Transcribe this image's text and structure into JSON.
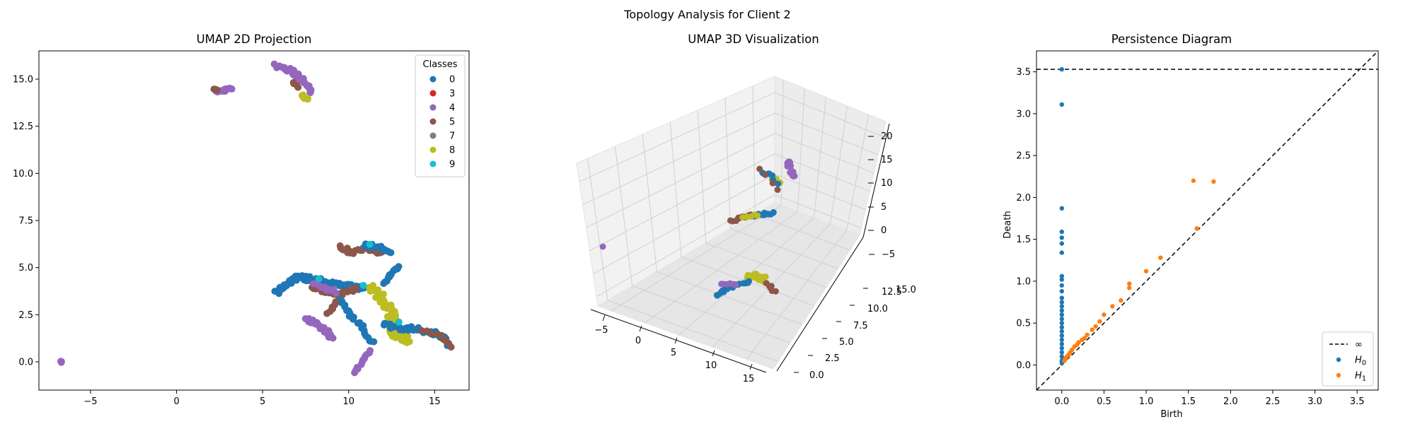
{
  "suptitle": "Topology Analysis for Client 2",
  "chart_data": [
    {
      "type": "scatter",
      "title": "UMAP 2D Projection",
      "xlim": [
        -8,
        17
      ],
      "ylim": [
        -1.5,
        16.5
      ],
      "xticks": [
        "−5",
        "0",
        "5",
        "10",
        "15"
      ],
      "xtick_values": [
        -5,
        0,
        5,
        10,
        15
      ],
      "yticks": [
        "0.0",
        "2.5",
        "5.0",
        "7.5",
        "10.0",
        "12.5",
        "15.0"
      ],
      "ytick_values": [
        0,
        2.5,
        5,
        7.5,
        10,
        12.5,
        15
      ],
      "legend": {
        "title": "Classes",
        "position": "top-right",
        "entries": [
          {
            "label": "0",
            "color": "#1f77b4"
          },
          {
            "label": "3",
            "color": "#d62728"
          },
          {
            "label": "4",
            "color": "#9467bd"
          },
          {
            "label": "5",
            "color": "#8c564b"
          },
          {
            "label": "7",
            "color": "#7f7f7f"
          },
          {
            "label": "8",
            "color": "#bcbd22"
          },
          {
            "label": "9",
            "color": "#17becf"
          }
        ]
      },
      "clusters": [
        {
          "color": "#9467bd",
          "path": [
            [
              5.8,
              15.7
            ],
            [
              6.5,
              15.5
            ],
            [
              7.0,
              15.2
            ],
            [
              7.5,
              14.8
            ],
            [
              7.8,
              14.3
            ]
          ],
          "n": 40,
          "spread": 0.12
        },
        {
          "color": "#bcbd22",
          "path": [
            [
              7.3,
              14.1
            ],
            [
              7.6,
              14.0
            ]
          ],
          "n": 6,
          "spread": 0.08
        },
        {
          "color": "#8c564b",
          "path": [
            [
              6.8,
              14.8
            ],
            [
              7.0,
              14.5
            ]
          ],
          "n": 4,
          "spread": 0.08
        },
        {
          "color": "#9467bd",
          "path": [
            [
              2.3,
              14.4
            ],
            [
              2.8,
              14.4
            ],
            [
              3.2,
              14.45
            ]
          ],
          "n": 14,
          "spread": 0.08
        },
        {
          "color": "#8c564b",
          "path": [
            [
              2.2,
              14.5
            ],
            [
              2.4,
              14.4
            ]
          ],
          "n": 3,
          "spread": 0.05
        },
        {
          "color": "#9467bd",
          "path": [
            [
              -6.7,
              0.0
            ]
          ],
          "n": 3,
          "spread": 0.03
        },
        {
          "color": "#1f77b4",
          "path": [
            [
              5.8,
              3.7
            ],
            [
              6.5,
              4.2
            ],
            [
              7.0,
              4.5
            ],
            [
              7.8,
              4.4
            ],
            [
              8.8,
              4.2
            ],
            [
              9.8,
              4.0
            ],
            [
              10.8,
              3.9
            ]
          ],
          "n": 80,
          "spread": 0.12
        },
        {
          "color": "#8c564b",
          "path": [
            [
              7.8,
              4.0
            ],
            [
              8.5,
              3.8
            ],
            [
              9.5,
              3.6
            ],
            [
              10.5,
              3.9
            ]
          ],
          "n": 24,
          "spread": 0.1
        },
        {
          "color": "#9467bd",
          "path": [
            [
              8.0,
              4.2
            ],
            [
              8.6,
              3.9
            ],
            [
              9.2,
              3.7
            ]
          ],
          "n": 12,
          "spread": 0.1
        },
        {
          "color": "#8c564b",
          "path": [
            [
              9.5,
              6.1
            ],
            [
              10.2,
              5.8
            ],
            [
              11.0,
              6.0
            ],
            [
              12.0,
              5.8
            ]
          ],
          "n": 26,
          "spread": 0.1
        },
        {
          "color": "#1f77b4",
          "path": [
            [
              11.0,
              6.2
            ],
            [
              11.8,
              6.1
            ],
            [
              12.4,
              5.7
            ]
          ],
          "n": 18,
          "spread": 0.1
        },
        {
          "color": "#1f77b4",
          "path": [
            [
              12.0,
              4.2
            ],
            [
              12.5,
              4.7
            ],
            [
              12.9,
              5.0
            ]
          ],
          "n": 14,
          "spread": 0.1
        },
        {
          "color": "#bcbd22",
          "path": [
            [
              11.2,
              4.0
            ],
            [
              12.0,
              3.4
            ],
            [
              12.5,
              2.6
            ],
            [
              12.3,
              2.0
            ],
            [
              12.8,
              1.4
            ],
            [
              13.5,
              1.2
            ]
          ],
          "n": 70,
          "spread": 0.25
        },
        {
          "color": "#1f77b4",
          "path": [
            [
              12.0,
              2.0
            ],
            [
              13.0,
              1.8
            ],
            [
              14.0,
              1.7
            ],
            [
              15.2,
              1.5
            ],
            [
              15.9,
              0.9
            ]
          ],
          "n": 40,
          "spread": 0.12
        },
        {
          "color": "#8c564b",
          "path": [
            [
              14.3,
              1.7
            ],
            [
              15.5,
              1.3
            ],
            [
              15.9,
              0.8
            ]
          ],
          "n": 10,
          "spread": 0.08
        },
        {
          "color": "#1f77b4",
          "path": [
            [
              9.5,
              3.2
            ],
            [
              10.0,
              2.6
            ],
            [
              10.8,
              1.8
            ],
            [
              11.4,
              1.0
            ]
          ],
          "n": 24,
          "spread": 0.1
        },
        {
          "color": "#9467bd",
          "path": [
            [
              7.6,
              2.3
            ],
            [
              8.2,
              2.0
            ],
            [
              8.8,
              1.6
            ],
            [
              9.0,
              1.3
            ]
          ],
          "n": 24,
          "spread": 0.12
        },
        {
          "color": "#8c564b",
          "path": [
            [
              8.8,
              2.5
            ],
            [
              9.3,
              3.2
            ]
          ],
          "n": 6,
          "spread": 0.08
        },
        {
          "color": "#9467bd",
          "path": [
            [
              10.3,
              -0.6
            ],
            [
              10.8,
              0.0
            ],
            [
              11.3,
              0.6
            ]
          ],
          "n": 12,
          "spread": 0.08
        },
        {
          "color": "#17becf",
          "path": [
            [
              8.3,
              4.4
            ],
            [
              10.9,
              4.1
            ],
            [
              12.9,
              2.1
            ],
            [
              11.2,
              6.2
            ]
          ],
          "n": 4,
          "spread": 0.05
        }
      ]
    },
    {
      "type": "scatter3d",
      "title": "UMAP 3D Visualization",
      "x_ticks": [
        "−5",
        "0",
        "5",
        "10",
        "15"
      ],
      "y_ticks": [
        "0.0",
        "2.5",
        "5.0",
        "7.5",
        "10.0",
        "12.5",
        "15.0"
      ],
      "z_ticks": [
        "−5",
        "0",
        "5",
        "10",
        "15",
        "20"
      ],
      "clusters": [
        {
          "color": "#9467bd",
          "px": [
            [
              1113,
              228
            ],
            [
              1118,
              240
            ],
            [
              1121,
              252
            ]
          ],
          "n": 18,
          "spread": 3
        },
        {
          "color": "#bcbd22",
          "px": [
            [
              1093,
              253
            ],
            [
              1102,
              258
            ]
          ],
          "n": 5,
          "spread": 2
        },
        {
          "color": "#1f77b4",
          "px": [
            [
              1078,
              243
            ],
            [
              1090,
              248
            ],
            [
              1098,
              262
            ]
          ],
          "n": 8,
          "spread": 2
        },
        {
          "color": "#8c564b",
          "px": [
            [
              1072,
              240
            ],
            [
              1100,
              268
            ]
          ],
          "n": 4,
          "spread": 2
        },
        {
          "color": "#8c564b",
          "px": [
            [
              1033,
              312
            ],
            [
              1050,
              308
            ],
            [
              1065,
              305
            ]
          ],
          "n": 12,
          "spread": 2
        },
        {
          "color": "#1f77b4",
          "px": [
            [
              1065,
              305
            ],
            [
              1080,
              303
            ],
            [
              1095,
              302
            ]
          ],
          "n": 12,
          "spread": 2
        },
        {
          "color": "#bcbd22",
          "px": [
            [
              1050,
              306
            ],
            [
              1070,
              304
            ]
          ],
          "n": 5,
          "spread": 2
        },
        {
          "color": "#9467bd",
          "px": [
            [
              852,
              349
            ]
          ],
          "n": 1,
          "spread": 0
        },
        {
          "color": "#bcbd22",
          "px": [
            [
              1055,
              392
            ],
            [
              1070,
              390
            ],
            [
              1082,
              396
            ]
          ],
          "n": 22,
          "spread": 4
        },
        {
          "color": "#1f77b4",
          "px": [
            [
              1012,
              418
            ],
            [
              1025,
              410
            ],
            [
              1040,
              402
            ],
            [
              1060,
              398
            ]
          ],
          "n": 18,
          "spread": 2
        },
        {
          "color": "#9467bd",
          "px": [
            [
              1020,
              400
            ],
            [
              1040,
              405
            ]
          ],
          "n": 6,
          "spread": 2
        },
        {
          "color": "#8c564b",
          "px": [
            [
              1085,
              402
            ],
            [
              1095,
              412
            ]
          ],
          "n": 6,
          "spread": 2
        }
      ]
    },
    {
      "type": "scatter",
      "title": "Persistence Diagram",
      "xlabel": "Birth",
      "ylabel": "Death",
      "xlim": [
        -0.3,
        3.75
      ],
      "ylim": [
        -0.3,
        3.75
      ],
      "xticks": [
        "0.0",
        "0.5",
        "1.0",
        "1.5",
        "2.0",
        "2.5",
        "3.0",
        "3.5"
      ],
      "xtick_values": [
        0,
        0.5,
        1,
        1.5,
        2,
        2.5,
        3,
        3.5
      ],
      "yticks": [
        "0.0",
        "0.5",
        "1.0",
        "1.5",
        "2.0",
        "2.5",
        "3.0",
        "3.5"
      ],
      "ytick_values": [
        0,
        0.5,
        1,
        1.5,
        2,
        2.5,
        3,
        3.5
      ],
      "infinity_death": 3.53,
      "legend": {
        "position": "bottom-right",
        "entries": [
          {
            "label": "∞",
            "kind": "dashed-line",
            "color": "#000000"
          },
          {
            "label": "H",
            "sub": "0",
            "kind": "point",
            "color": "#1f77b4"
          },
          {
            "label": "H",
            "sub": "1",
            "kind": "point",
            "color": "#ff7f0e"
          }
        ]
      },
      "series": [
        {
          "color": "#1f77b4",
          "points": [
            [
              0,
              3.53
            ],
            [
              0,
              3.11
            ],
            [
              0,
              1.87
            ],
            [
              0,
              1.59
            ],
            [
              0,
              1.52
            ],
            [
              0,
              1.45
            ],
            [
              0,
              1.34
            ],
            [
              0,
              1.06
            ],
            [
              0,
              1.02
            ],
            [
              0,
              0.95
            ],
            [
              0,
              0.88
            ],
            [
              0,
              0.8
            ],
            [
              0,
              0.75
            ],
            [
              0,
              0.7
            ],
            [
              0,
              0.65
            ],
            [
              0,
              0.6
            ],
            [
              0,
              0.55
            ],
            [
              0,
              0.5
            ],
            [
              0,
              0.45
            ],
            [
              0,
              0.4
            ],
            [
              0,
              0.35
            ],
            [
              0,
              0.3
            ],
            [
              0,
              0.25
            ],
            [
              0,
              0.2
            ],
            [
              0,
              0.15
            ],
            [
              0,
              0.1
            ],
            [
              0,
              0.05
            ],
            [
              0,
              0.02
            ]
          ]
        },
        {
          "color": "#ff7f0e",
          "points": [
            [
              1.56,
              2.2
            ],
            [
              1.8,
              2.19
            ],
            [
              1.6,
              1.63
            ],
            [
              1.17,
              1.28
            ],
            [
              1.0,
              1.12
            ],
            [
              0.8,
              0.97
            ],
            [
              0.8,
              0.92
            ],
            [
              0.7,
              0.77
            ],
            [
              0.6,
              0.7
            ],
            [
              0.5,
              0.6
            ],
            [
              0.45,
              0.52
            ],
            [
              0.4,
              0.46
            ],
            [
              0.36,
              0.42
            ],
            [
              0.3,
              0.36
            ],
            [
              0.27,
              0.32
            ],
            [
              0.24,
              0.3
            ],
            [
              0.2,
              0.27
            ],
            [
              0.18,
              0.24
            ],
            [
              0.15,
              0.22
            ],
            [
              0.12,
              0.18
            ],
            [
              0.1,
              0.15
            ],
            [
              0.08,
              0.12
            ],
            [
              0.06,
              0.1
            ],
            [
              0.05,
              0.08
            ],
            [
              0.04,
              0.07
            ],
            [
              0.03,
              0.05
            ]
          ]
        }
      ]
    }
  ]
}
